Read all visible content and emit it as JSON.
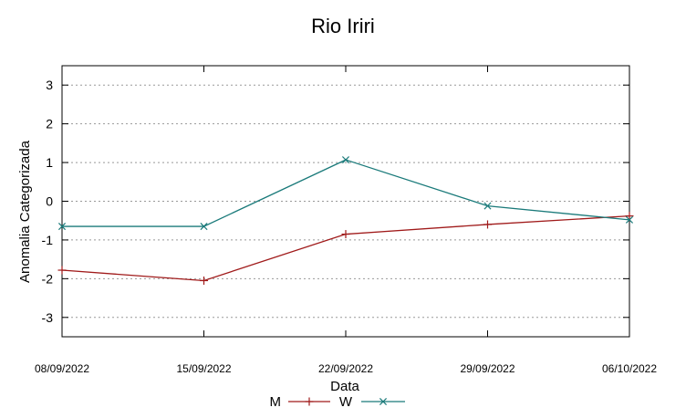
{
  "chart_data": {
    "type": "line",
    "title": "Rio Iriri",
    "xlabel": "Data",
    "ylabel": "Anomalia Categorizada",
    "categories": [
      "08/09/2022",
      "15/09/2022",
      "22/09/2022",
      "29/09/2022",
      "06/10/2022"
    ],
    "ylim": [
      -3.5,
      3.5
    ],
    "yticks": [
      3,
      2,
      1,
      0,
      -1,
      -2,
      -3
    ],
    "ytick_labels": [
      "3",
      "2",
      "1",
      "0",
      "-1",
      "-2",
      "-3"
    ],
    "grid": true,
    "legend": "bottom",
    "series": [
      {
        "name": "M",
        "color": "#a01a1a",
        "marker": "plus",
        "values": [
          -1.78,
          -2.05,
          -0.85,
          -0.6,
          -0.38
        ]
      },
      {
        "name": "W",
        "color": "#1a7a7a",
        "marker": "x",
        "values": [
          -0.65,
          -0.65,
          1.07,
          -0.12,
          -0.48
        ]
      }
    ]
  }
}
